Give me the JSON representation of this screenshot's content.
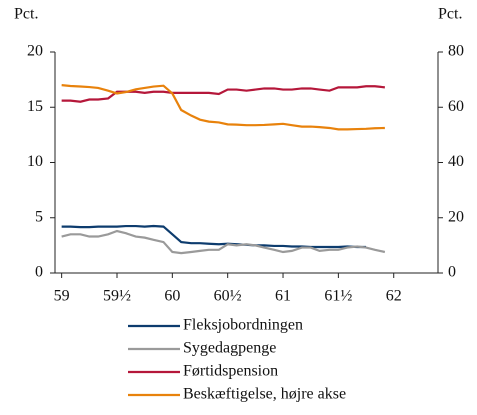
{
  "chart_data": {
    "type": "line",
    "y_label": "Pct.",
    "y2_label": "Pct.",
    "x": [
      59,
      59.08,
      59.17,
      59.25,
      59.33,
      59.42,
      59.5,
      59.58,
      59.67,
      59.75,
      59.83,
      59.92,
      60,
      60.08,
      60.17,
      60.25,
      60.33,
      60.42,
      60.5,
      60.58,
      60.67,
      60.75,
      60.83,
      60.92,
      61,
      61.08,
      61.17,
      61.25,
      61.33,
      61.42,
      61.5,
      61.58,
      61.67,
      61.75,
      61.83,
      61.92
    ],
    "xlim": [
      58.94,
      62.4
    ],
    "xticks": [
      59,
      {
        "value": 59.5,
        "label": "59½"
      },
      60,
      {
        "value": 60.5,
        "label": "60½"
      },
      61,
      {
        "value": 61.5,
        "label": "61½"
      },
      62
    ],
    "ylim": [
      0,
      20
    ],
    "yticks": [
      0,
      5,
      10,
      15,
      20
    ],
    "y2lim": [
      0,
      80
    ],
    "y2ticks": [
      0,
      20,
      40,
      60,
      80
    ],
    "series": [
      {
        "name": "Fleksjobordningen",
        "color": "#0d3c6e",
        "values": [
          4.2,
          4.2,
          4.15,
          4.15,
          4.2,
          4.2,
          4.2,
          4.25,
          4.25,
          4.2,
          4.25,
          4.2,
          3.5,
          2.8,
          2.7,
          2.7,
          2.65,
          2.6,
          2.65,
          2.6,
          2.55,
          2.5,
          2.5,
          2.45,
          2.45,
          2.4,
          2.4,
          2.35,
          2.35,
          2.35,
          2.35,
          2.4,
          2.35,
          2.35,
          null,
          null
        ]
      },
      {
        "name": "Sygedagpenge",
        "color": "#9a9a9a",
        "values": [
          3.3,
          3.5,
          3.5,
          3.3,
          3.3,
          3.5,
          3.8,
          3.6,
          3.3,
          3.2,
          3.0,
          2.8,
          1.9,
          1.8,
          1.9,
          2.0,
          2.1,
          2.1,
          2.6,
          2.5,
          2.6,
          2.5,
          2.3,
          2.1,
          1.9,
          2.0,
          2.3,
          2.3,
          2.0,
          2.1,
          2.1,
          2.3,
          2.4,
          2.3,
          2.1,
          1.9
        ]
      },
      {
        "name": "Førtidspension",
        "color": "#b5173a",
        "values": [
          15.6,
          15.6,
          15.5,
          15.7,
          15.7,
          15.8,
          16.4,
          16.4,
          16.4,
          16.3,
          16.4,
          16.4,
          16.3,
          16.3,
          16.3,
          16.3,
          16.3,
          16.2,
          16.6,
          16.6,
          16.5,
          16.6,
          16.7,
          16.7,
          16.6,
          16.6,
          16.7,
          16.7,
          16.6,
          16.5,
          16.8,
          16.8,
          16.8,
          16.9,
          16.9,
          16.8
        ]
      },
      {
        "name": "Beskæftigelse, højre akse",
        "color": "#e8820c",
        "axis": "y2",
        "values": [
          68,
          67.7,
          67.5,
          67.3,
          67,
          66,
          65,
          65.5,
          66.5,
          67,
          67.5,
          67.8,
          65,
          59,
          57,
          55.5,
          54.8,
          54.5,
          53.8,
          53.7,
          53.5,
          53.5,
          53.6,
          53.8,
          54,
          53.5,
          53,
          53,
          52.8,
          52.5,
          52,
          52,
          52.1,
          52.2,
          52.4,
          52.5
        ]
      }
    ]
  }
}
